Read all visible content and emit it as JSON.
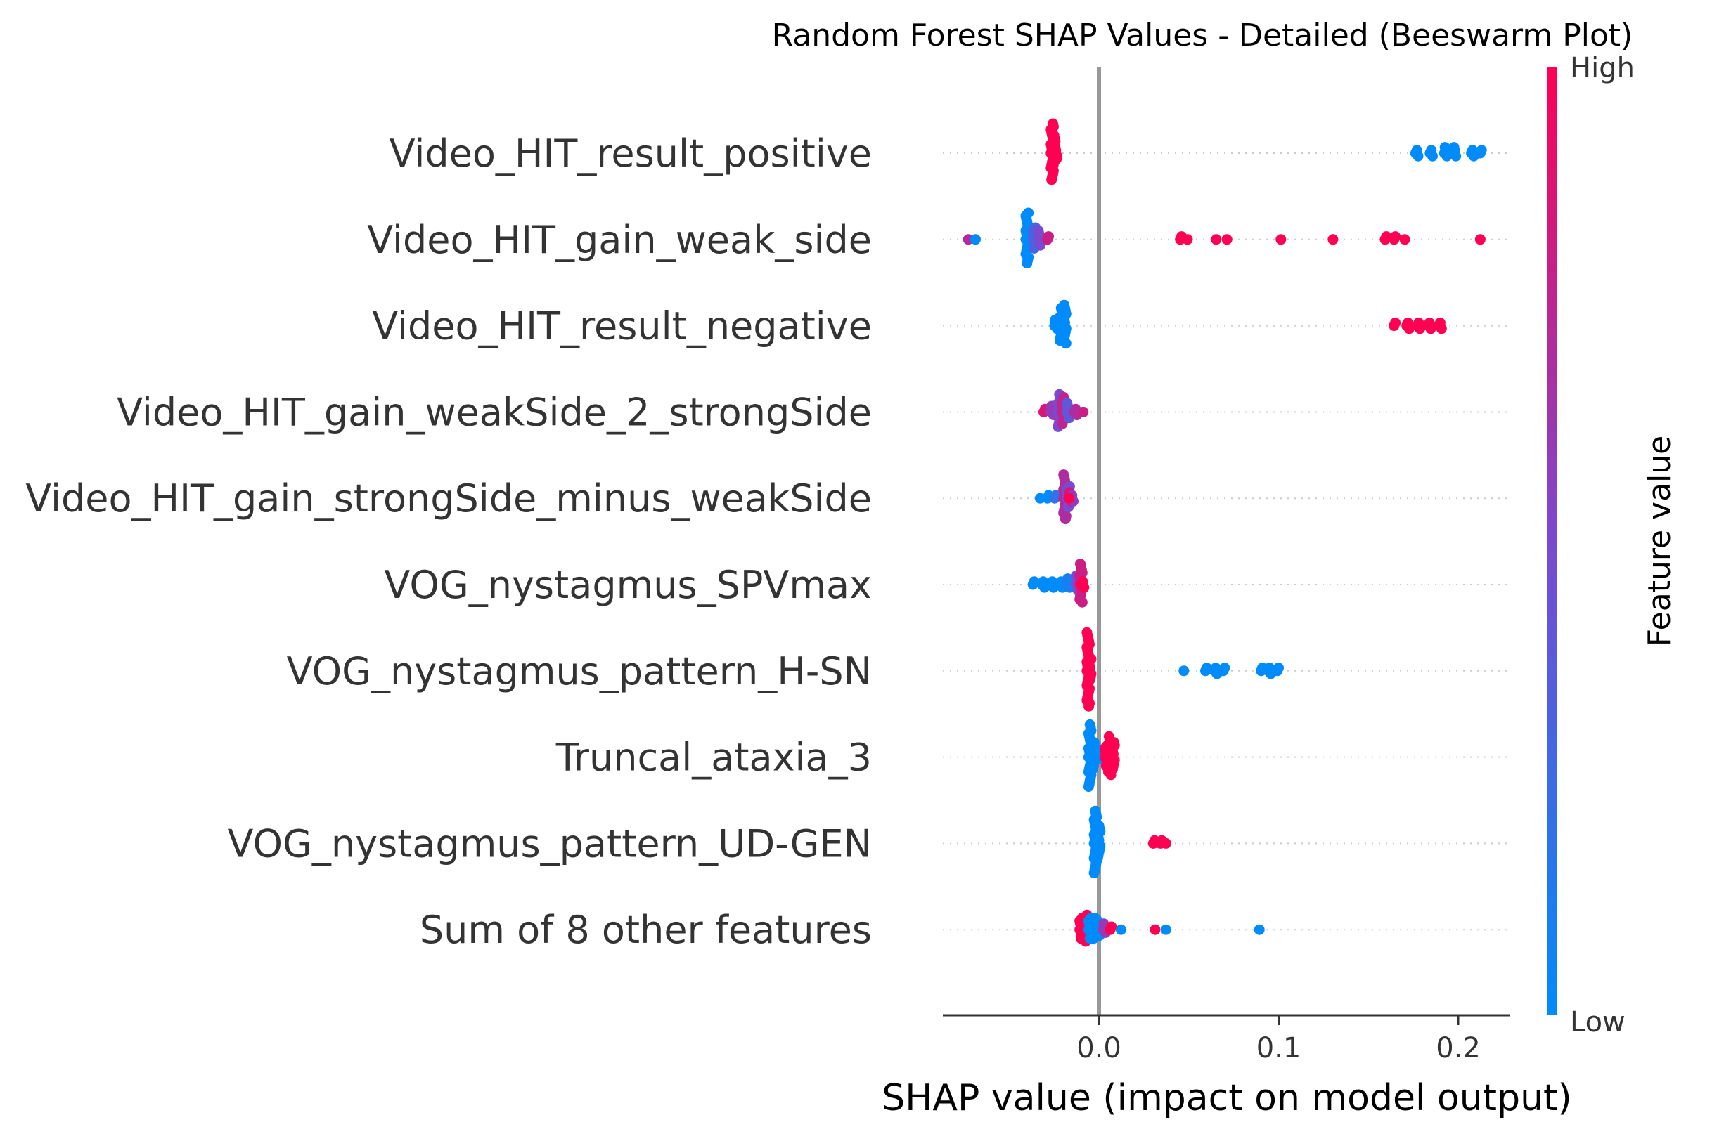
{
  "chart_data": {
    "type": "scatter",
    "subtype": "shap-beeswarm",
    "title": "Random Forest SHAP Values - Detailed (Beeswarm Plot)",
    "xlabel": "SHAP value (impact on model output)",
    "xlim": [
      -0.087,
      0.23
    ],
    "xticks": [
      "0.0",
      "0.1",
      "0.2"
    ],
    "xtick_values": [
      0.0,
      0.1,
      0.2
    ],
    "colorbar": {
      "title": "Feature value",
      "high_label": "High",
      "low_label": "Low",
      "low_color": "#008bfb",
      "high_color": "#ff0052"
    },
    "features": [
      {
        "name": "Video_HIT_result_positive",
        "points": [
          {
            "x": -0.026,
            "c": 1,
            "n": 20
          },
          {
            "x": -0.025,
            "c": 1,
            "n": 12
          },
          {
            "x": -0.024,
            "c": 1,
            "n": 6
          },
          {
            "x": 0.177,
            "c": 0,
            "n": 3
          },
          {
            "x": 0.185,
            "c": 0,
            "n": 3
          },
          {
            "x": 0.193,
            "c": 0,
            "n": 4
          },
          {
            "x": 0.198,
            "c": 0,
            "n": 4
          },
          {
            "x": 0.208,
            "c": 0,
            "n": 3
          },
          {
            "x": 0.213,
            "c": 0,
            "n": 2
          }
        ]
      },
      {
        "name": "Video_HIT_gain_weak_side",
        "points": [
          {
            "x": -0.072,
            "c": 0.7,
            "n": 1
          },
          {
            "x": -0.068,
            "c": 0,
            "n": 1
          },
          {
            "x": -0.04,
            "c": 0,
            "n": 18
          },
          {
            "x": -0.036,
            "c": 0.3,
            "n": 8
          },
          {
            "x": -0.033,
            "c": 0.5,
            "n": 6
          },
          {
            "x": -0.028,
            "c": 0.8,
            "n": 2
          },
          {
            "x": 0.046,
            "c": 1,
            "n": 2
          },
          {
            "x": 0.05,
            "c": 1,
            "n": 1
          },
          {
            "x": 0.066,
            "c": 1,
            "n": 1
          },
          {
            "x": 0.072,
            "c": 1,
            "n": 1
          },
          {
            "x": 0.102,
            "c": 1,
            "n": 1
          },
          {
            "x": 0.131,
            "c": 1,
            "n": 1
          },
          {
            "x": 0.16,
            "c": 1,
            "n": 2
          },
          {
            "x": 0.165,
            "c": 1,
            "n": 2
          },
          {
            "x": 0.171,
            "c": 1,
            "n": 1
          },
          {
            "x": 0.213,
            "c": 1,
            "n": 1
          }
        ]
      },
      {
        "name": "Video_HIT_result_negative",
        "points": [
          {
            "x": -0.024,
            "c": 0,
            "n": 4
          },
          {
            "x": -0.021,
            "c": 0,
            "n": 12
          },
          {
            "x": -0.019,
            "c": 0,
            "n": 14
          },
          {
            "x": 0.165,
            "c": 1,
            "n": 2
          },
          {
            "x": 0.172,
            "c": 1,
            "n": 3
          },
          {
            "x": 0.178,
            "c": 1,
            "n": 3
          },
          {
            "x": 0.184,
            "c": 1,
            "n": 3
          },
          {
            "x": 0.19,
            "c": 1,
            "n": 3
          }
        ]
      },
      {
        "name": "Video_HIT_gain_weakSide_2_strongSide",
        "points": [
          {
            "x": -0.03,
            "c": 0.85,
            "n": 2
          },
          {
            "x": -0.026,
            "c": 0.6,
            "n": 4
          },
          {
            "x": -0.022,
            "c": 0.5,
            "n": 12
          },
          {
            "x": -0.02,
            "c": 0.75,
            "n": 10
          },
          {
            "x": -0.017,
            "c": 0.4,
            "n": 6
          },
          {
            "x": -0.013,
            "c": 0.7,
            "n": 3
          },
          {
            "x": -0.008,
            "c": 0.8,
            "n": 1
          }
        ]
      },
      {
        "name": "Video_HIT_gain_strongSide_minus_weakSide",
        "points": [
          {
            "x": -0.032,
            "c": 0,
            "n": 1
          },
          {
            "x": -0.028,
            "c": 0,
            "n": 2
          },
          {
            "x": -0.024,
            "c": 0.2,
            "n": 2
          },
          {
            "x": -0.019,
            "c": 0.7,
            "n": 16
          },
          {
            "x": -0.017,
            "c": 0.5,
            "n": 8
          },
          {
            "x": -0.016,
            "c": 0.85,
            "n": 4
          },
          {
            "x": -0.015,
            "c": 0.6,
            "n": 3
          },
          {
            "x": -0.016,
            "c": 1,
            "n": 1
          }
        ]
      },
      {
        "name": "VOG_nystagmus_SPVmax",
        "points": [
          {
            "x": -0.036,
            "c": 0,
            "n": 2
          },
          {
            "x": -0.031,
            "c": 0,
            "n": 3
          },
          {
            "x": -0.026,
            "c": 0,
            "n": 3
          },
          {
            "x": -0.021,
            "c": 0,
            "n": 3
          },
          {
            "x": -0.017,
            "c": 0.1,
            "n": 4
          },
          {
            "x": -0.012,
            "c": 0.5,
            "n": 6
          },
          {
            "x": -0.01,
            "c": 0.8,
            "n": 14
          },
          {
            "x": -0.009,
            "c": 1,
            "n": 3
          }
        ]
      },
      {
        "name": "VOG_nystagmus_pattern_H-SN",
        "points": [
          {
            "x": -0.006,
            "c": 1,
            "n": 26
          },
          {
            "x": -0.005,
            "c": 1,
            "n": 8
          },
          {
            "x": 0.048,
            "c": 0,
            "n": 1
          },
          {
            "x": 0.06,
            "c": 0,
            "n": 2
          },
          {
            "x": 0.065,
            "c": 0,
            "n": 3
          },
          {
            "x": 0.07,
            "c": 0,
            "n": 2
          },
          {
            "x": 0.091,
            "c": 0,
            "n": 2
          },
          {
            "x": 0.095,
            "c": 0,
            "n": 3
          },
          {
            "x": 0.1,
            "c": 0,
            "n": 2
          }
        ]
      },
      {
        "name": "Truncal_ataxia_3",
        "points": [
          {
            "x": -0.005,
            "c": 0,
            "n": 22
          },
          {
            "x": -0.003,
            "c": 0,
            "n": 10
          },
          {
            "x": 0.002,
            "c": 0,
            "n": 4
          },
          {
            "x": 0.004,
            "c": 1,
            "n": 8
          },
          {
            "x": 0.006,
            "c": 1,
            "n": 14
          },
          {
            "x": 0.008,
            "c": 1,
            "n": 10
          }
        ]
      },
      {
        "name": "VOG_nystagmus_pattern_UD-GEN",
        "points": [
          {
            "x": -0.002,
            "c": 0,
            "n": 22
          },
          {
            "x": 0.0,
            "c": 0,
            "n": 12
          },
          {
            "x": 0.031,
            "c": 1,
            "n": 2
          },
          {
            "x": 0.035,
            "c": 1,
            "n": 2
          },
          {
            "x": 0.038,
            "c": 1,
            "n": 1
          }
        ]
      },
      {
        "name": "Sum of 8 other features",
        "points": [
          {
            "x": -0.01,
            "c": 1,
            "n": 8
          },
          {
            "x": -0.007,
            "c": 1,
            "n": 10
          },
          {
            "x": -0.005,
            "c": 0,
            "n": 8
          },
          {
            "x": -0.003,
            "c": 0,
            "n": 8
          },
          {
            "x": 0.0,
            "c": 0,
            "n": 6
          },
          {
            "x": 0.003,
            "c": 0.6,
            "n": 4
          },
          {
            "x": 0.007,
            "c": 1,
            "n": 2
          },
          {
            "x": 0.013,
            "c": 0,
            "n": 1
          },
          {
            "x": 0.032,
            "c": 1,
            "n": 1
          },
          {
            "x": 0.038,
            "c": 0,
            "n": 1
          },
          {
            "x": 0.09,
            "c": 0,
            "n": 1
          }
        ]
      }
    ]
  }
}
